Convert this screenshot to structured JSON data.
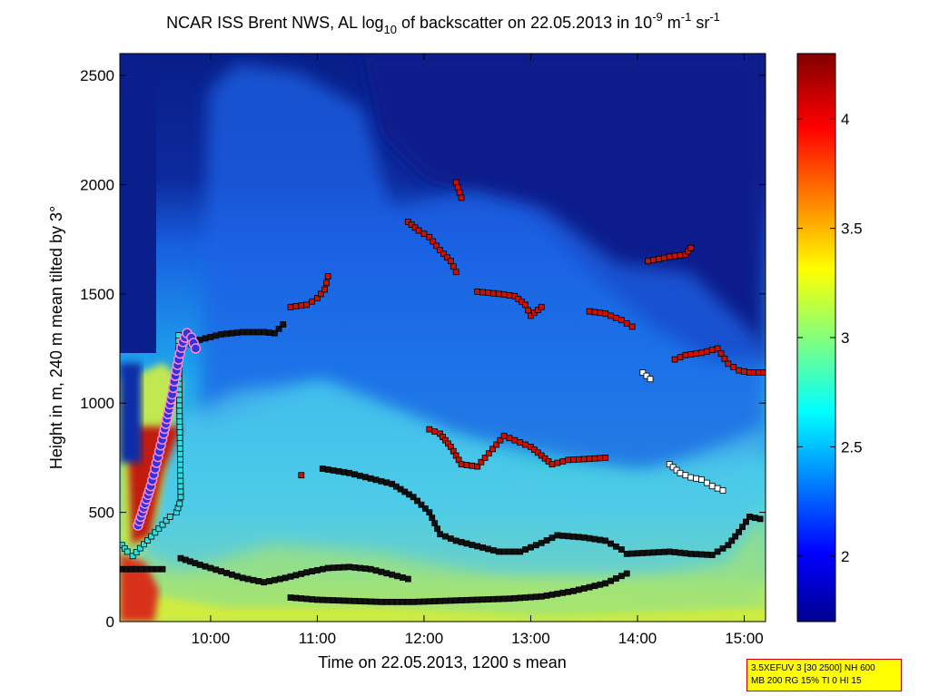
{
  "chart_data": {
    "type": "heatmap",
    "title": {
      "prefix": "NCAR ISS Brent NWS, AL log",
      "sub": "10",
      "middle": " of backscatter on 22.05.2013 in 10",
      "exp1": "-9",
      "unit_m": " m",
      "exp2": "-1",
      "unit_sr": " sr",
      "exp3": "-1"
    },
    "xlabel": "Time on 22.05.2013, 1200 s mean",
    "ylabel": "Height in m, 240 m mean tilted by 3°",
    "xlim": [
      9.15,
      15.2
    ],
    "ylim": [
      0,
      2600
    ],
    "x_ticks": [
      {
        "value": 10,
        "label": "10:00"
      },
      {
        "value": 11,
        "label": "11:00"
      },
      {
        "value": 12,
        "label": "12:00"
      },
      {
        "value": 13,
        "label": "13:00"
      },
      {
        "value": 14,
        "label": "14:00"
      },
      {
        "value": 15,
        "label": "15:00"
      }
    ],
    "y_ticks": [
      {
        "value": 0,
        "label": "0"
      },
      {
        "value": 500,
        "label": "500"
      },
      {
        "value": 1000,
        "label": "1000"
      },
      {
        "value": 1500,
        "label": "1500"
      },
      {
        "value": 2000,
        "label": "2000"
      },
      {
        "value": 2500,
        "label": "2500"
      }
    ],
    "colorbar": {
      "range": [
        1.7,
        4.3
      ],
      "ticks": [
        {
          "value": 2,
          "label": "2"
        },
        {
          "value": 2.5,
          "label": "2.5"
        },
        {
          "value": 3,
          "label": "3"
        },
        {
          "value": 3.5,
          "label": "3.5"
        },
        {
          "value": 4,
          "label": "4"
        }
      ]
    },
    "series": [
      {
        "marker": "square",
        "color": "#111111",
        "points": [
          [
            9.17,
            240
          ],
          [
            9.3,
            240
          ],
          [
            9.45,
            240
          ],
          [
            9.55,
            240
          ]
        ]
      },
      {
        "marker": "square",
        "color": "#111111",
        "points": [
          [
            9.72,
            290
          ],
          [
            9.9,
            260
          ],
          [
            10.1,
            230
          ],
          [
            10.3,
            200
          ],
          [
            10.5,
            180
          ],
          [
            10.7,
            200
          ],
          [
            10.9,
            225
          ],
          [
            11.1,
            245
          ],
          [
            11.3,
            250
          ],
          [
            11.5,
            240
          ],
          [
            11.7,
            215
          ],
          [
            11.85,
            195
          ]
        ]
      },
      {
        "marker": "square",
        "color": "#111111",
        "points": [
          [
            10.75,
            110
          ],
          [
            11.0,
            100
          ],
          [
            11.3,
            95
          ],
          [
            11.6,
            90
          ],
          [
            11.9,
            90
          ],
          [
            12.2,
            95
          ],
          [
            12.5,
            100
          ],
          [
            12.8,
            105
          ],
          [
            13.1,
            115
          ],
          [
            13.4,
            140
          ],
          [
            13.7,
            175
          ],
          [
            13.9,
            220
          ]
        ]
      },
      {
        "marker": "square",
        "color": "#111111",
        "points": [
          [
            11.05,
            700
          ],
          [
            11.3,
            680
          ],
          [
            11.5,
            655
          ],
          [
            11.7,
            630
          ],
          [
            11.9,
            570
          ],
          [
            12.05,
            500
          ],
          [
            12.15,
            400
          ],
          [
            12.3,
            370
          ],
          [
            12.5,
            345
          ],
          [
            12.7,
            320
          ],
          [
            12.9,
            320
          ],
          [
            13.1,
            360
          ],
          [
            13.25,
            395
          ],
          [
            13.5,
            385
          ],
          [
            13.7,
            370
          ],
          [
            13.85,
            330
          ]
        ]
      },
      {
        "marker": "square",
        "color": "#111111",
        "points": [
          [
            13.9,
            310
          ],
          [
            14.1,
            315
          ],
          [
            14.3,
            320
          ],
          [
            14.5,
            310
          ],
          [
            14.7,
            305
          ],
          [
            14.85,
            350
          ],
          [
            14.95,
            410
          ],
          [
            15.05,
            480
          ],
          [
            15.15,
            470
          ]
        ]
      },
      {
        "marker": "square",
        "color": "#111111",
        "points": [
          [
            9.75,
            1290
          ],
          [
            9.9,
            1290
          ],
          [
            10.1,
            1315
          ],
          [
            10.3,
            1325
          ],
          [
            10.5,
            1325
          ],
          [
            10.6,
            1320
          ],
          [
            10.68,
            1360
          ]
        ]
      },
      {
        "marker": "square",
        "color": "#cc1100",
        "points": [
          [
            10.75,
            1440
          ],
          [
            10.9,
            1450
          ],
          [
            11.0,
            1480
          ],
          [
            11.07,
            1520
          ],
          [
            11.1,
            1580
          ]
        ]
      },
      {
        "marker": "square",
        "color": "#cc1100",
        "points": [
          [
            11.85,
            1830
          ],
          [
            11.95,
            1790
          ],
          [
            12.05,
            1760
          ],
          [
            12.15,
            1700
          ],
          [
            12.25,
            1650
          ],
          [
            12.3,
            1600
          ]
        ]
      },
      {
        "marker": "square",
        "color": "#cc1100",
        "points": [
          [
            12.3,
            2010
          ],
          [
            12.35,
            1940
          ]
        ]
      },
      {
        "marker": "square",
        "color": "#cc1100",
        "points": [
          [
            12.5,
            1510
          ],
          [
            12.7,
            1500
          ],
          [
            12.85,
            1490
          ],
          [
            12.95,
            1450
          ],
          [
            13.0,
            1400
          ],
          [
            13.1,
            1440
          ]
        ]
      },
      {
        "marker": "square",
        "color": "#cc1100",
        "points": [
          [
            13.55,
            1420
          ],
          [
            13.7,
            1410
          ],
          [
            13.85,
            1380
          ],
          [
            13.95,
            1350
          ]
        ]
      },
      {
        "marker": "square",
        "color": "#cc1100",
        "points": [
          [
            12.05,
            880
          ],
          [
            12.15,
            860
          ],
          [
            12.2,
            830
          ],
          [
            12.25,
            800
          ],
          [
            12.35,
            720
          ],
          [
            12.5,
            710
          ],
          [
            12.75,
            850
          ],
          [
            13.0,
            800
          ],
          [
            13.1,
            760
          ],
          [
            13.2,
            720
          ],
          [
            13.35,
            740
          ],
          [
            13.55,
            745
          ],
          [
            13.7,
            750
          ]
        ]
      },
      {
        "marker": "square",
        "color": "#cc1100",
        "points": [
          [
            10.85,
            670
          ]
        ]
      },
      {
        "marker": "square",
        "color": "#cc1100",
        "points": [
          [
            14.1,
            1650
          ],
          [
            14.2,
            1660
          ],
          [
            14.3,
            1670
          ],
          [
            14.45,
            1680
          ],
          [
            14.5,
            1710
          ]
        ]
      },
      {
        "marker": "square",
        "color": "#cc1100",
        "points": [
          [
            14.35,
            1200
          ],
          [
            14.45,
            1220
          ],
          [
            14.6,
            1230
          ],
          [
            14.75,
            1250
          ],
          [
            14.85,
            1180
          ],
          [
            14.95,
            1150
          ],
          [
            15.05,
            1140
          ],
          [
            15.18,
            1140
          ]
        ]
      },
      {
        "marker": "square",
        "color": "#ffffff",
        "points": [
          [
            14.05,
            1140
          ],
          [
            14.12,
            1110
          ]
        ]
      },
      {
        "marker": "square",
        "color": "#ffffff",
        "points": [
          [
            14.3,
            720
          ],
          [
            14.4,
            680
          ],
          [
            14.5,
            660
          ],
          [
            14.6,
            650
          ],
          [
            14.7,
            620
          ],
          [
            14.8,
            600
          ]
        ]
      },
      {
        "marker": "square",
        "color": "#ffffff",
        "points": [
          [
            9.72,
            1290
          ],
          [
            9.78,
            1320
          ],
          [
            9.82,
            1270
          ]
        ]
      },
      {
        "marker": "square",
        "color": "#33dddd",
        "points": [
          [
            9.17,
            350
          ],
          [
            9.22,
            320
          ],
          [
            9.27,
            300
          ],
          [
            9.62,
            480
          ],
          [
            9.68,
            500
          ],
          [
            9.71,
            540
          ],
          [
            9.72,
            570
          ],
          [
            9.7,
            1310
          ]
        ]
      },
      {
        "marker": "circle",
        "color": "#3333dd",
        "points": [
          [
            9.32,
            440
          ],
          [
            9.36,
            500
          ],
          [
            9.4,
            560
          ],
          [
            9.44,
            620
          ],
          [
            9.48,
            700
          ],
          [
            9.52,
            780
          ],
          [
            9.56,
            860
          ],
          [
            9.6,
            950
          ],
          [
            9.64,
            1040
          ],
          [
            9.66,
            1100
          ],
          [
            9.7,
            1200
          ],
          [
            9.74,
            1280
          ],
          [
            9.78,
            1320
          ],
          [
            9.82,
            1300
          ],
          [
            9.86,
            1250
          ]
        ]
      }
    ]
  },
  "info_box": {
    "line1": "3.5XEFUV 3 [30 2500] NH 600",
    "line2": "MB 200 RG 15% TI 0 HI 15"
  }
}
